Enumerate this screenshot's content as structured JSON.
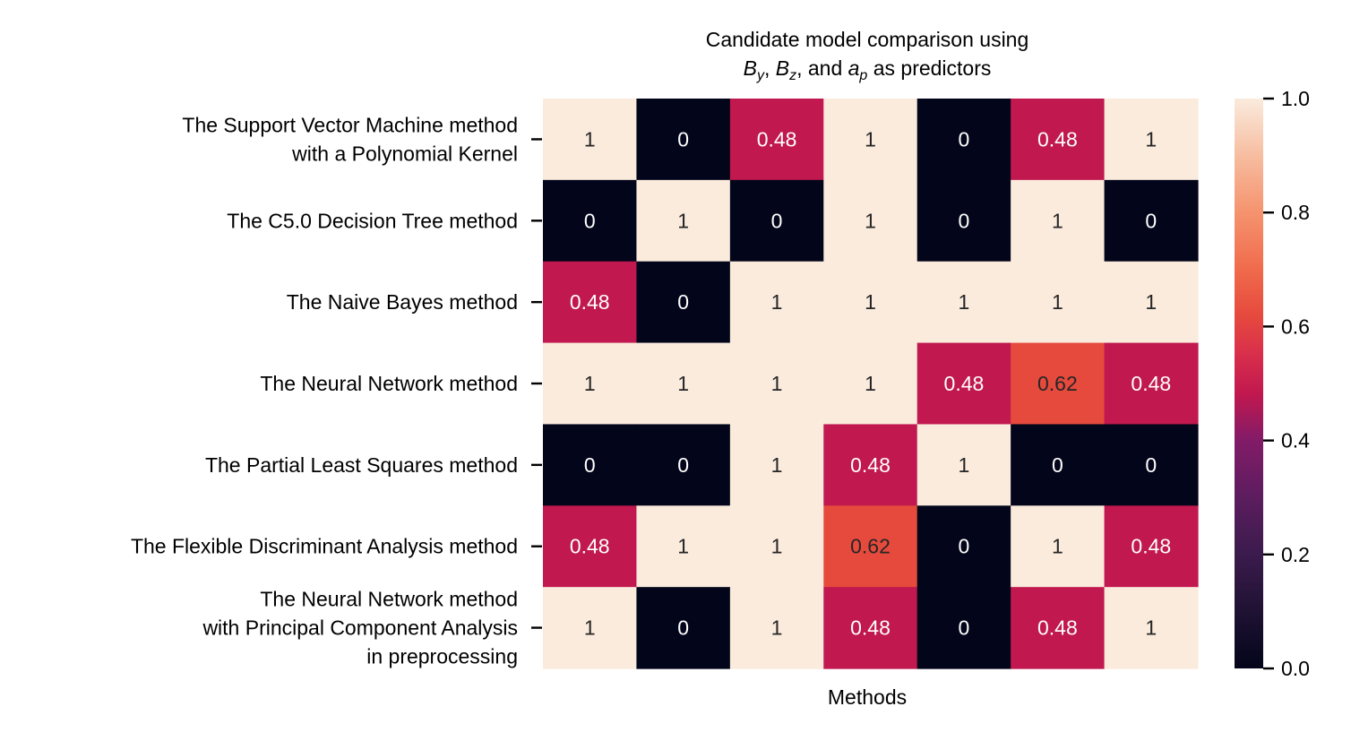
{
  "chart_data": {
    "type": "heatmap",
    "title": {
      "line1": "Candidate model comparison using",
      "line2": [
        {
          "text": "B",
          "style": "italic"
        },
        {
          "text": "y",
          "style": "italic-sub"
        },
        {
          "text": ", ",
          "style": "normal"
        },
        {
          "text": "B",
          "style": "italic"
        },
        {
          "text": "z",
          "style": "italic-sub"
        },
        {
          "text": ", and ",
          "style": "normal"
        },
        {
          "text": "a",
          "style": "italic"
        },
        {
          "text": "p",
          "style": "italic-sub"
        },
        {
          "text": " as predictors",
          "style": "normal"
        }
      ]
    },
    "xlabel": "Methods",
    "ylabel": "",
    "row_labels": [
      [
        "The Support Vector Machine method",
        "with a Polynomial Kernel"
      ],
      [
        "The C5.0 Decision Tree method"
      ],
      [
        "The Naive Bayes method"
      ],
      [
        "The Neural Network method"
      ],
      [
        "The Partial Least Squares method"
      ],
      [
        "The Flexible Discriminant Analysis method"
      ],
      [
        "The Neural Network method",
        "with Principal Component Analysis",
        "in preprocessing"
      ]
    ],
    "values": [
      [
        1,
        0,
        0.48,
        1,
        0,
        0.48,
        1
      ],
      [
        0,
        1,
        0,
        1,
        0,
        1,
        0
      ],
      [
        0.48,
        0,
        1,
        1,
        1,
        1,
        1
      ],
      [
        1,
        1,
        1,
        1,
        0.48,
        0.62,
        0.48
      ],
      [
        0,
        0,
        1,
        0.48,
        1,
        0,
        0
      ],
      [
        0.48,
        1,
        1,
        0.62,
        0,
        1,
        0.48
      ],
      [
        1,
        0,
        1,
        0.48,
        0,
        0.48,
        1
      ]
    ],
    "value_labels": [
      [
        "1",
        "0",
        "0.48",
        "1",
        "0",
        "0.48",
        "1"
      ],
      [
        "0",
        "1",
        "0",
        "1",
        "0",
        "1",
        "0"
      ],
      [
        "0.48",
        "0",
        "1",
        "1",
        "1",
        "1",
        "1"
      ],
      [
        "1",
        "1",
        "1",
        "1",
        "0.48",
        "0.62",
        "0.48"
      ],
      [
        "0",
        "0",
        "1",
        "0.48",
        "1",
        "0",
        "0"
      ],
      [
        "0.48",
        "1",
        "1",
        "0.62",
        "0",
        "1",
        "0.48"
      ],
      [
        "1",
        "0",
        "1",
        "0.48",
        "0",
        "0.48",
        "1"
      ]
    ],
    "colorbar": {
      "range": [
        0.0,
        1.0
      ],
      "ticks": [
        0.0,
        0.2,
        0.4,
        0.6,
        0.8,
        1.0
      ],
      "tick_labels": [
        "0.0",
        "0.2",
        "0.4",
        "0.6",
        "0.8",
        "1.0"
      ]
    },
    "colormap": "rocket",
    "colormap_stops": [
      {
        "v": 0.0,
        "color": "#03051a"
      },
      {
        "v": 0.1,
        "color": "#1f1233"
      },
      {
        "v": 0.2,
        "color": "#3b1b4d"
      },
      {
        "v": 0.3,
        "color": "#5c1d5e"
      },
      {
        "v": 0.4,
        "color": "#821b68"
      },
      {
        "v": 0.48,
        "color": "#c0184f"
      },
      {
        "v": 0.55,
        "color": "#d82e4c"
      },
      {
        "v": 0.62,
        "color": "#e64a3d"
      },
      {
        "v": 0.7,
        "color": "#f06b4c"
      },
      {
        "v": 0.8,
        "color": "#f5936e"
      },
      {
        "v": 0.9,
        "color": "#f7bda0"
      },
      {
        "v": 1.0,
        "color": "#faebdd"
      }
    ],
    "annotation_threshold": 0.55,
    "annotation_colors": {
      "light": "#ffffff",
      "dark": "#262626"
    },
    "x_ticks_shown": false,
    "grid": false,
    "legend": "colorbar-right"
  }
}
